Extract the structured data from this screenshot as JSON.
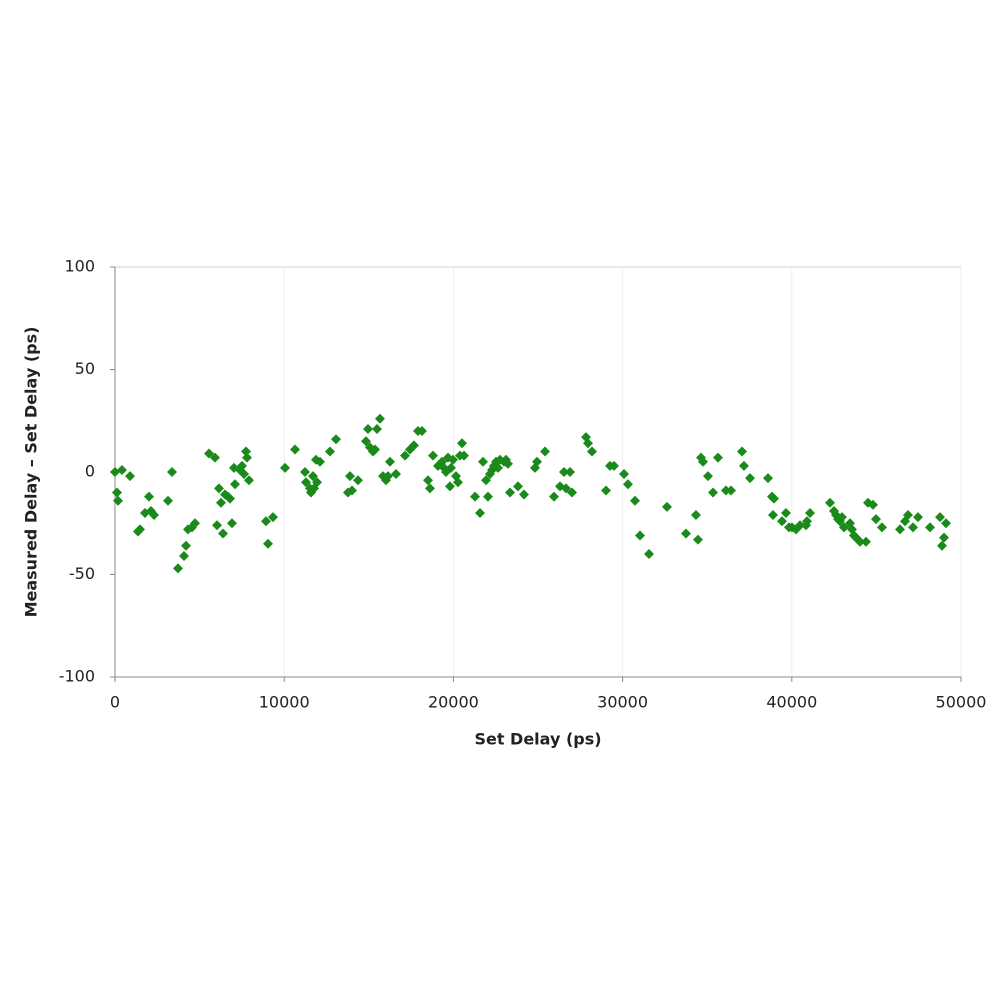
{
  "chart_data": {
    "type": "scatter",
    "x_label": "Set Delay (ps)",
    "y_label": "Measured Delay – Set Delay (ps)",
    "color": "#1a8a1a",
    "xlim": [
      0,
      50000
    ],
    "xticks": [
      0,
      10000,
      20000,
      30000,
      40000,
      50000
    ],
    "ylim": [
      -100,
      100
    ],
    "yticks": [
      -100,
      -50,
      0,
      50,
      100
    ],
    "grid": true,
    "x": [
      0,
      118,
      177,
      414,
      886,
      1360,
      1477,
      1773,
      2009,
      2127,
      2305,
      3132,
      3369,
      3723,
      4078,
      4196,
      4314,
      4550,
      4728,
      5555,
      5910,
      6028,
      6146,
      6265,
      6383,
      6501,
      6678,
      6796,
      6914,
      7032,
      7092,
      7388,
      7506,
      7624,
      7742,
      7801,
      7919,
      8924,
      9042,
      9338,
      10047,
      10638,
      11229,
      11288,
      11525,
      11584,
      11702,
      11761,
      11879,
      11938,
      12115,
      12706,
      13061,
      13770,
      13888,
      14007,
      14361,
      14834,
      14952,
      15070,
      15248,
      15366,
      15484,
      15661,
      15839,
      16016,
      16134,
      16252,
      16607,
      17139,
      17434,
      17670,
      17907,
      18143,
      18498,
      18616,
      18794,
      19089,
      19326,
      19444,
      19562,
      19680,
      19798,
      19858,
      19976,
      20153,
      20271,
      20390,
      20508,
      20626,
      21276,
      21572,
      21749,
      21926,
      22044,
      22163,
      22281,
      22399,
      22517,
      22635,
      22754,
      22990,
      23108,
      23226,
      23345,
      23817,
      24172,
      24822,
      24941,
      25413,
      25945,
      26300,
      26536,
      26655,
      26891,
      27009,
      27836,
      27955,
      28191,
      29018,
      29255,
      29491,
      30082,
      30318,
      30732,
      31028,
      31560,
      32623,
      33746,
      34337,
      34455,
      34633,
      34751,
      35046,
      35342,
      35637,
      36110,
      36406,
      37056,
      37174,
      37529,
      38593,
      38829,
      38947,
      38888,
      39420,
      39656,
      39834,
      40011,
      40248,
      40484,
      40838,
      40898,
      41075,
      42257,
      42494,
      42612,
      42730,
      42848,
      42966,
      43084,
      43439,
      43557,
      43675,
      43794,
      44030,
      44384,
      44503,
      44798,
      44976,
      45330,
      46394,
      46690,
      46867,
      47163,
      47458,
      48168,
      48759,
      48877,
      48995,
      49113
    ],
    "values": [
      0,
      -10,
      -14,
      1,
      -2,
      -29,
      -28,
      -20,
      -12,
      -19,
      -21,
      -14,
      0,
      -47,
      -41,
      -36,
      -28,
      -27,
      -25,
      9,
      7,
      -26,
      -8,
      -15,
      -30,
      -11,
      -12,
      -13,
      -25,
      2,
      -6,
      1,
      3,
      -1,
      10,
      7,
      -4,
      -24,
      -35,
      -22,
      2,
      11,
      0,
      -5,
      -8,
      -10,
      -2,
      -8,
      6,
      -5,
      5,
      10,
      16,
      -10,
      -2,
      -9,
      -4,
      15,
      21,
      12,
      10,
      11,
      21,
      26,
      -2,
      -4,
      -2,
      5,
      -1,
      8,
      11,
      13,
      20,
      20,
      -4,
      -8,
      8,
      3,
      5,
      2,
      0,
      7,
      -7,
      2,
      6,
      -2,
      -5,
      8,
      14,
      8,
      -12,
      -20,
      5,
      -4,
      -12,
      -1,
      1,
      3,
      5,
      2,
      6,
      5,
      6,
      4,
      -10,
      -7,
      -11,
      2,
      5,
      10,
      -12,
      -7,
      0,
      -8,
      0,
      -10,
      17,
      14,
      10,
      -9,
      3,
      3,
      -1,
      -6,
      -14,
      -31,
      -40,
      -17,
      -30,
      -21,
      -33,
      7,
      5,
      -2,
      -10,
      7,
      -9,
      -9,
      10,
      3,
      -3,
      -3,
      -12,
      -13,
      -21,
      -24,
      -20,
      -27,
      -27,
      -28,
      -26,
      -26,
      -24,
      -20,
      -15,
      -19,
      -21,
      -23,
      -24,
      -22,
      -27,
      -25,
      -28,
      -31,
      -32,
      -34,
      -34,
      -15,
      -16,
      -23,
      -27,
      -28,
      -24,
      -21,
      -27,
      -22,
      -27,
      -22,
      -36,
      -32,
      -25
    ]
  }
}
